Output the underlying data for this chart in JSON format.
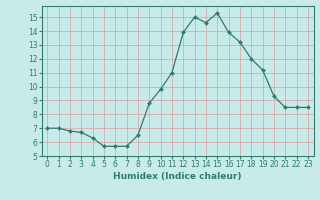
{
  "x": [
    0,
    1,
    2,
    3,
    4,
    5,
    6,
    7,
    8,
    9,
    10,
    11,
    12,
    13,
    14,
    15,
    16,
    17,
    18,
    19,
    20,
    21,
    22,
    23
  ],
  "y": [
    7.0,
    7.0,
    6.8,
    6.7,
    6.3,
    5.7,
    5.7,
    5.7,
    6.5,
    8.8,
    9.8,
    11.0,
    13.9,
    15.0,
    14.6,
    15.3,
    13.9,
    13.2,
    12.0,
    11.2,
    9.3,
    8.5,
    8.5,
    8.5
  ],
  "xlabel": "Humidex (Indice chaleur)",
  "line_color": "#2e7d6e",
  "marker": "D",
  "marker_size": 2.0,
  "bg_color": "#c8eae8",
  "grid_color": "#d9a0a0",
  "axis_color": "#2e7d6e",
  "xlim": [
    -0.5,
    23.5
  ],
  "ylim": [
    5,
    15.8
  ],
  "yticks": [
    5,
    6,
    7,
    8,
    9,
    10,
    11,
    12,
    13,
    14,
    15
  ],
  "xticks": [
    0,
    1,
    2,
    3,
    4,
    5,
    6,
    7,
    8,
    9,
    10,
    11,
    12,
    13,
    14,
    15,
    16,
    17,
    18,
    19,
    20,
    21,
    22,
    23
  ],
  "tick_fontsize": 5.5,
  "xlabel_fontsize": 6.5,
  "xlabel_fontweight": "bold"
}
